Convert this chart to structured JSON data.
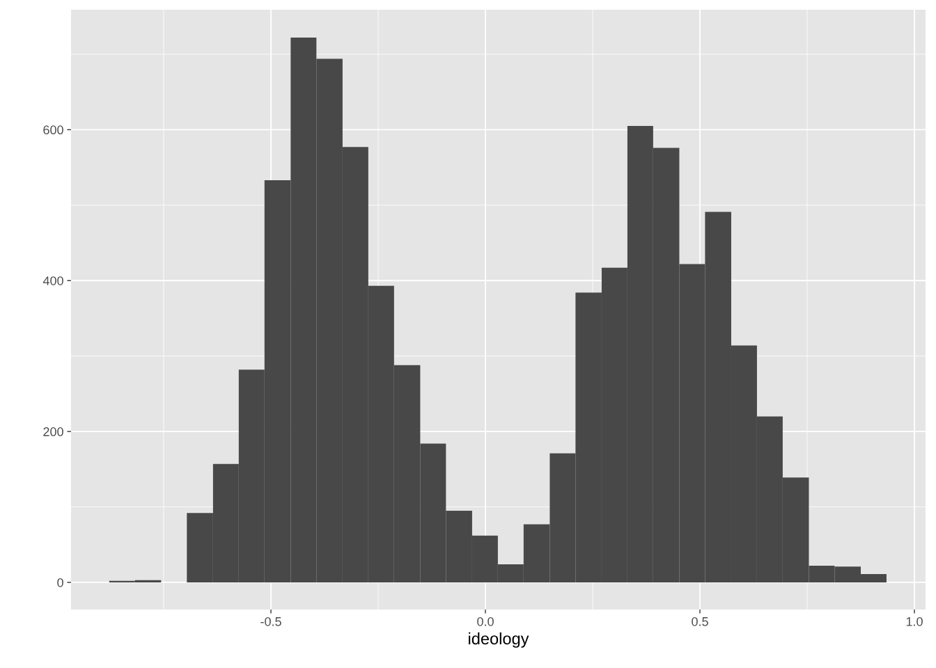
{
  "chart_data": {
    "type": "histogram",
    "xlabel": "ideology",
    "bins": [
      -0.877,
      -0.817,
      -0.756,
      -0.696,
      -0.635,
      -0.575,
      -0.515,
      -0.454,
      -0.394,
      -0.333,
      -0.273,
      -0.213,
      -0.152,
      -0.092,
      -0.031,
      0.029,
      0.089,
      0.15,
      0.21,
      0.271,
      0.331,
      0.391,
      0.452,
      0.512,
      0.573,
      0.633,
      0.693,
      0.754,
      0.814,
      0.875,
      0.935
    ],
    "values": [
      2,
      3,
      0,
      92,
      157,
      282,
      533,
      722,
      694,
      577,
      393,
      288,
      184,
      95,
      62,
      24,
      77,
      171,
      384,
      417,
      605,
      576,
      422,
      491,
      314,
      220,
      139,
      22,
      21,
      11
    ],
    "color": "#484848",
    "xlim": [
      -0.966,
      1.026
    ],
    "xticks": [
      {
        "value": -0.5,
        "label": "-0.5"
      },
      {
        "value": 0,
        "label": "0.0"
      },
      {
        "value": 0.5,
        "label": "0.5"
      },
      {
        "value": 1,
        "label": "1.0"
      }
    ],
    "ylim": [
      -36,
      759
    ],
    "yticks": [
      0,
      200,
      400,
      600
    ],
    "grid": true
  }
}
